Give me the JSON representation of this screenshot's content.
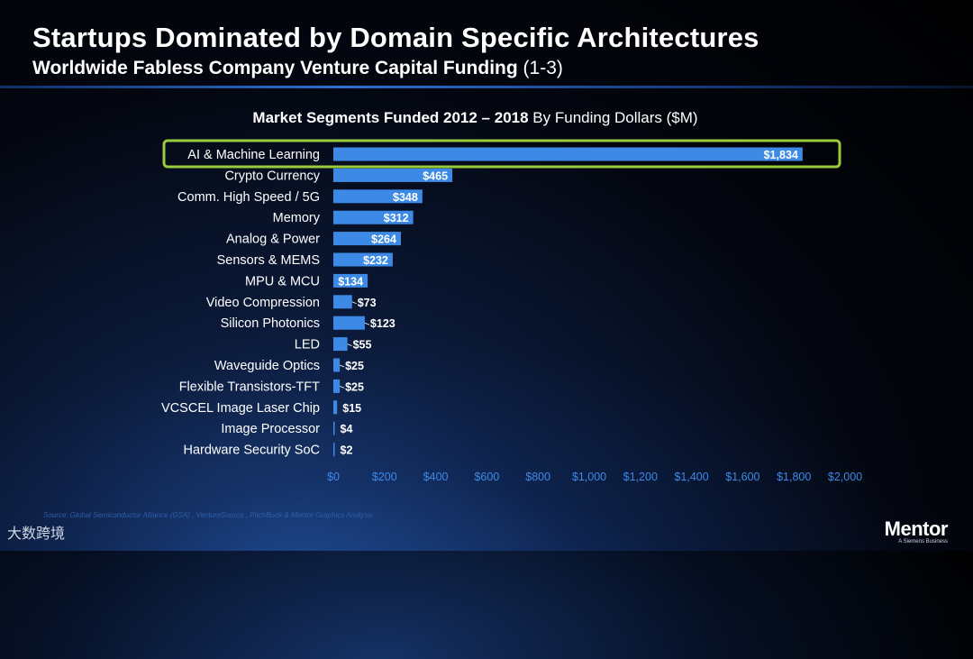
{
  "header": {
    "title": "Startups Dominated by Domain Specific Architectures",
    "subtitle": "Worldwide Fabless Company Venture Capital Funding",
    "subtitle_suffix": "(1-3)"
  },
  "chart_data": {
    "type": "bar",
    "orientation": "horizontal",
    "title_bold": "Market Segments Funded 2012 – 2018",
    "title_normal": "By Funding Dollars ($M)",
    "categories": [
      "AI & Machine Learning",
      "Crypto Currency",
      "Comm. High Speed / 5G",
      "Memory",
      "Analog & Power",
      "Sensors & MEMS",
      "MPU & MCU",
      "Video Compression",
      "Silicon Photonics",
      "LED",
      "Waveguide Optics",
      "Flexible Transistors-TFT",
      "VCSCEL Image Laser Chip",
      "Image Processor",
      "Hardware Security SoC"
    ],
    "values": [
      1834,
      465,
      348,
      312,
      264,
      232,
      134,
      73,
      123,
      55,
      25,
      25,
      15,
      4,
      2
    ],
    "data_labels": [
      "$1,834",
      "$465",
      "$348",
      "$312",
      "$264",
      "$232",
      "$134",
      "$73",
      "$123",
      "$55",
      "$25",
      "$25",
      "$15",
      "$4",
      "$2"
    ],
    "xlim": [
      0,
      2000
    ],
    "x_ticks": [
      "$0",
      "$200",
      "$400",
      "$600",
      "$800",
      "$1,000",
      "$1,200",
      "$1,400",
      "$1,600",
      "$1,800",
      "$2,000"
    ],
    "highlighted_category": "AI & Machine Learning",
    "grid": false
  },
  "colors": {
    "bar": "#3d8ae6",
    "highlight": "#9acb3c",
    "text": "#ffffff"
  },
  "footer": {
    "source": "Source: Global Semiconductor Alliance (GSA) , VentureSource , PitchBook & Mentor Graphics Analysis",
    "watermark": "大数跨境",
    "brand": "Mentor",
    "brand_sub": "A Siemens Business"
  }
}
